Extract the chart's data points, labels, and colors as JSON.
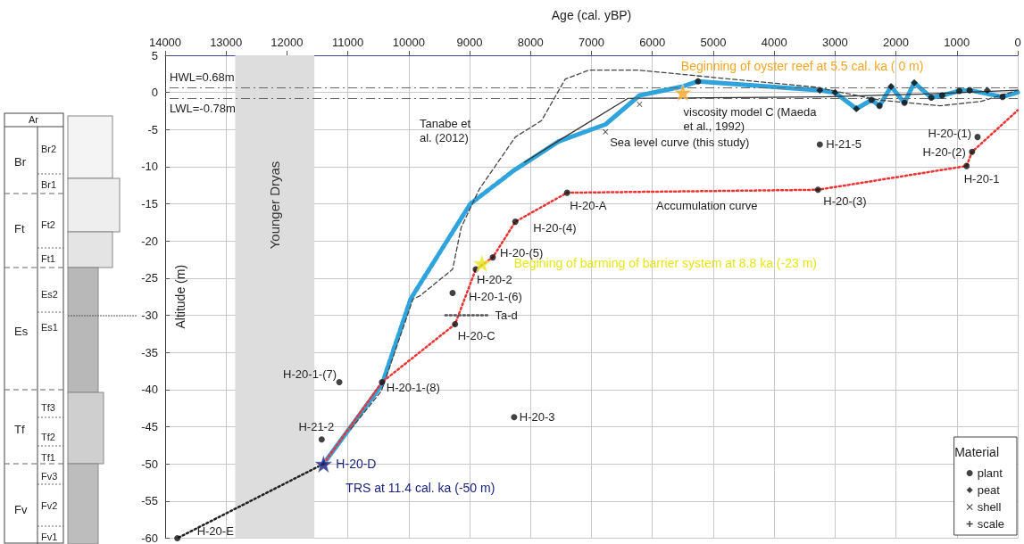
{
  "chart_data": {
    "type": "line",
    "xlabel": "Age (cal. yBP)",
    "ylabel": "Altitude (m)",
    "legend_title": "Material",
    "legend": "bottom right",
    "grid": true,
    "xlim": [
      14000,
      0
    ],
    "xticks": [
      14000,
      13000,
      12000,
      11000,
      10000,
      9000,
      8000,
      7000,
      6000,
      5000,
      4000,
      3000,
      2000,
      1000,
      0
    ],
    "ylim": [
      -60,
      5
    ],
    "yticks": [
      -60,
      -55,
      -50,
      -45,
      -40,
      -35,
      -30,
      -25,
      -20,
      -15,
      -10,
      -5,
      0,
      5
    ],
    "ref_lines": [
      {
        "axis": "y",
        "value": 0.68,
        "label": "HWL=0.68m",
        "color": "#666666",
        "line_style": "dashed"
      },
      {
        "axis": "y",
        "value": -0.78,
        "label": "LWL=-0.78m",
        "color": "#666666",
        "line_style": "dashed"
      }
    ],
    "bands": [
      {
        "axis": "x",
        "from": 12850,
        "to": 11550,
        "label": "Younger Dryas",
        "color": "#dddddd"
      }
    ],
    "series": [
      {
        "color": "#2fa3dc",
        "line_style": "solid",
        "marker": "none",
        "x": [
          11400,
          10440
        ],
        "values": [
          -50,
          -39.3
        ]
      },
      {
        "color": "#2fa3dc",
        "line_style": "dashed",
        "marker": "none",
        "x": [
          10440,
          9970,
          8990,
          8290
        ],
        "values": [
          -39.3,
          -27.8,
          -15,
          -10.6
        ]
      },
      {
        "color": "#2fa3dc",
        "line_style": "solid",
        "marker": "none",
        "x": [
          8290,
          7540,
          6770,
          6210,
          5500,
          5250,
          3250,
          3000,
          2650,
          2400,
          2270,
          2080,
          1860,
          1700,
          1420,
          1240,
          960,
          790,
          250,
          0
        ],
        "values": [
          -10.6,
          -6.6,
          -4.3,
          -0.4,
          0.8,
          1.5,
          0.3,
          0,
          -2.2,
          -1,
          -1.8,
          0.8,
          -1.4,
          1.3,
          -0.7,
          -0.4,
          0.2,
          0.3,
          -0.6,
          0
        ]
      },
      {
        "color": "#333333",
        "line_style": "solid",
        "marker": "none",
        "x": [
          8100,
          7500,
          6400,
          3200,
          1500,
          0
        ],
        "values": [
          -9.4,
          -6.3,
          -0.8,
          -0.6,
          -0.2,
          0.3
        ]
      },
      {
        "color": "#444444",
        "line_style": "dashed",
        "marker": "none",
        "x": [
          10950,
          10450,
          9930,
          9820,
          9280,
          9140,
          8840,
          8250,
          7820,
          7430,
          7040,
          6890,
          6230,
          5470,
          3310,
          2290,
          1280,
          600,
          0
        ],
        "values": [
          -45.3,
          -40.2,
          -27.8,
          -27.4,
          -23.8,
          -18.2,
          -13,
          -6,
          -3.8,
          1.8,
          3,
          3,
          3,
          2.4,
          0.7,
          -1,
          -1.8,
          -1.2,
          0.3
        ]
      },
      {
        "color": "#ee3333",
        "line_style": "dotted",
        "marker": "none",
        "x": [
          11400,
          10440,
          9240,
          8900,
          8620,
          8250,
          7400,
          3280,
          840,
          750,
          0
        ],
        "values": [
          -50,
          -39,
          -31.2,
          -23.8,
          -22.2,
          -17.4,
          -13.5,
          -13.1,
          -9.9,
          -8,
          -2.4
        ]
      },
      {
        "color": "#222222",
        "line_style": "dotted",
        "marker": "none",
        "x": [
          11400,
          13800
        ],
        "values": [
          -50,
          -60
        ]
      },
      {
        "color": "#555555",
        "line_style": "dotted",
        "marker": "none",
        "x": [
          9400,
          8700
        ],
        "values": [
          -30,
          -30
        ]
      },
      {
        "type": "scatter",
        "name": "plant",
        "color": "#111111",
        "marker": "circle",
        "x": [
          3250,
          660,
          750,
          840,
          3280,
          7400,
          8250,
          8620,
          8900,
          9280,
          9240,
          11140,
          10440,
          11430,
          8270,
          13800,
          5250,
          2400,
          2270,
          1860,
          1420,
          1240,
          960,
          790,
          250
        ],
        "values": [
          -7,
          -6,
          -8,
          -9.9,
          -13.1,
          -13.5,
          -17.4,
          -22.2,
          -23.8,
          -27,
          -31.2,
          -39,
          -39,
          -46.7,
          -43.7,
          -60,
          1.5,
          -1,
          -1.8,
          -1.4,
          -0.7,
          -0.4,
          0.2,
          0.3,
          -0.6
        ]
      },
      {
        "type": "scatter",
        "name": "peat",
        "color": "#111111",
        "marker": "diamond",
        "x": [
          3250,
          3000,
          2650,
          2080,
          1700,
          500
        ],
        "values": [
          0.3,
          0,
          -2.2,
          0.8,
          1.3,
          0.3
        ]
      },
      {
        "type": "scatter",
        "name": "shell",
        "color": "#111111",
        "marker": "cross",
        "x": [
          6210,
          6770
        ],
        "values": [
          -1.6,
          -5.3
        ]
      },
      {
        "type": "scatter",
        "name": "scale",
        "color": "#111111",
        "marker": "plus"
      },
      {
        "type": "scatter",
        "color": "#f5a623",
        "marker": "star",
        "x": [
          5500
        ],
        "values": [
          0
        ]
      },
      {
        "type": "scatter",
        "color": "#e6e619",
        "marker": "star",
        "x": [
          8800
        ],
        "values": [
          -23
        ]
      },
      {
        "type": "scatter",
        "color": "#1a237e",
        "marker": "star",
        "x": [
          11400
        ],
        "values": [
          -50
        ]
      }
    ],
    "annotations": [
      {
        "text": "Beginning of oyster reef at 5.5 cal. ka ( 0 m)",
        "x": 5500,
        "y": 0
      },
      {
        "text": "Begining of barming of barrier system at 8.8 ka (-23 m)",
        "x": 8800,
        "y": -23
      },
      {
        "text": "TRS at 11.4 cal. ka (-50 m)",
        "x": 11400,
        "y": -50
      },
      {
        "text": "viscosity model C (Maeda et al., 1992)",
        "x": 5900,
        "y": -0.7
      },
      {
        "text": "Sea level curve (this study)",
        "x": 6770,
        "y": -5
      },
      {
        "text": "H-21-5",
        "x": 3250,
        "y": -7
      },
      {
        "text": "H-20-(1)",
        "x": 660,
        "y": -6
      },
      {
        "text": "H-20-(2)",
        "x": 750,
        "y": -8
      },
      {
        "text": "H-20-1",
        "x": 840,
        "y": -9.9
      },
      {
        "text": "H-20-(3)",
        "x": 3280,
        "y": -13.1
      },
      {
        "text": "H-20-A",
        "x": 7400,
        "y": -13.5
      },
      {
        "text": "H-20-(4)",
        "x": 8250,
        "y": -17.4
      },
      {
        "text": "H-20-(5)",
        "x": 8620,
        "y": -22.2
      },
      {
        "text": "H-20-2",
        "x": 8900,
        "y": -23.8
      },
      {
        "text": "H-20-1-(6)",
        "x": 9280,
        "y": -27
      },
      {
        "text": "H-20-C",
        "x": 9240,
        "y": -31.2
      },
      {
        "text": "Ta-d",
        "x": 8700,
        "y": -30
      },
      {
        "text": "H-20-1-(7)",
        "x": 11140,
        "y": -39
      },
      {
        "text": "H-20-1-(8)",
        "x": 10440,
        "y": -39
      },
      {
        "text": "H-21-2",
        "x": 11430,
        "y": -46.7
      },
      {
        "text": "H-20-D",
        "x": 11400,
        "y": -50
      },
      {
        "text": "H-20-3",
        "x": 8270,
        "y": -43.7
      },
      {
        "text": "H-20-E",
        "x": 13800,
        "y": -60
      },
      "Tanabe et al. (2012)",
      "Accumulation curve",
      "Ar",
      "Br",
      "Br2",
      "Br1",
      "Ft",
      "Ft2",
      "Ft1",
      "Es",
      "Es2",
      "Es1",
      "Tf",
      "Tf3",
      "Tf2",
      "Tf1",
      "Fv",
      "Fv3",
      "Fv2",
      "Fv1"
    ]
  }
}
